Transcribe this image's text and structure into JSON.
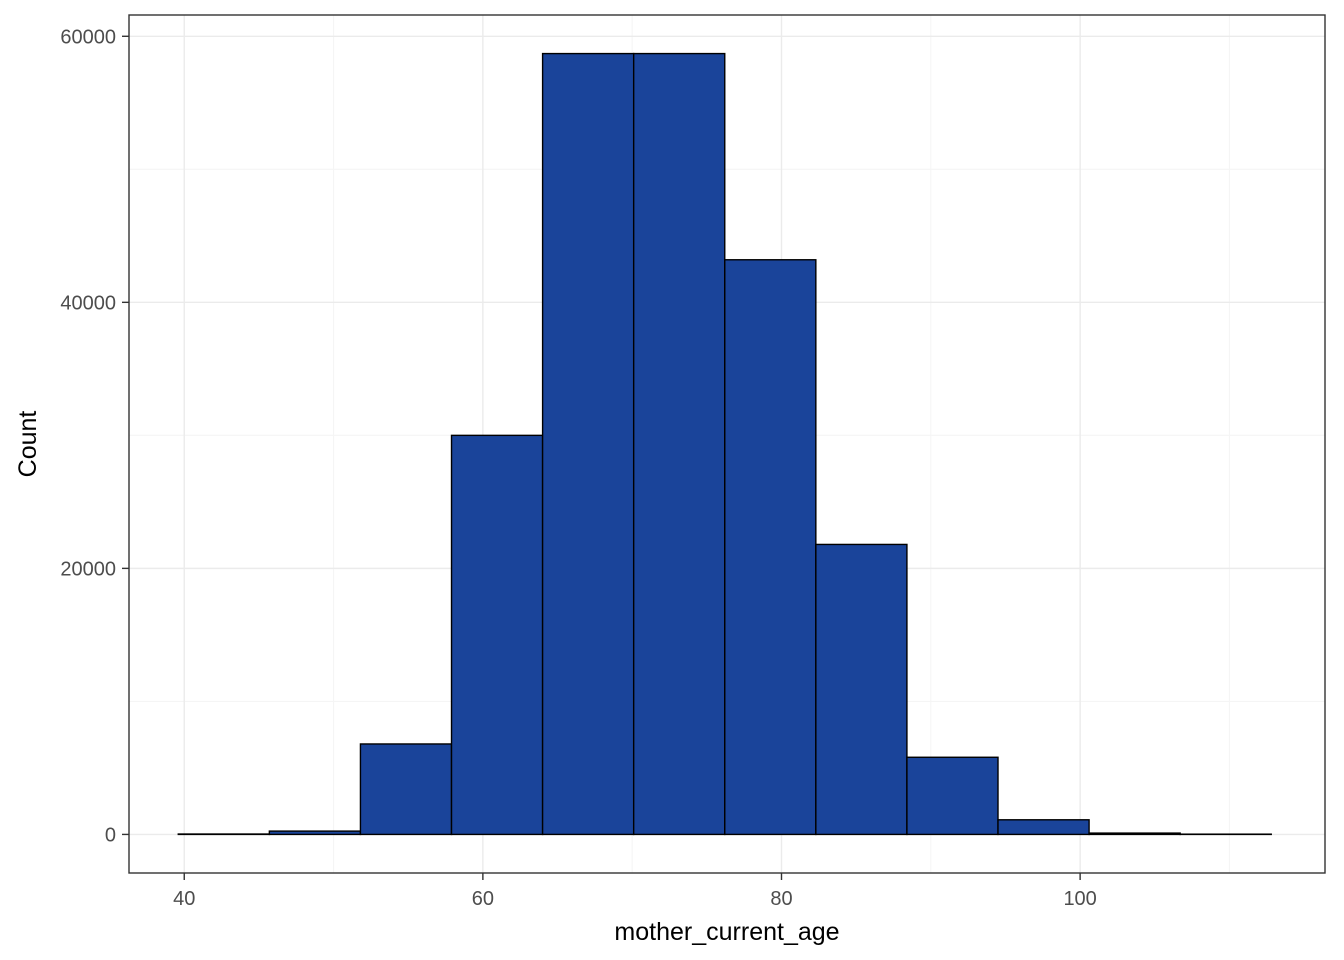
{
  "chart_data": {
    "type": "bar",
    "subtype": "histogram",
    "title": "",
    "xlabel": "mother_current_age",
    "ylabel": "Count",
    "xlim": [
      36.3,
      116.4
    ],
    "ylim": [
      -2900,
      61600
    ],
    "x_ticks": [
      40,
      60,
      80,
      100
    ],
    "x_tick_labels": [
      "40",
      "60",
      "80",
      "100"
    ],
    "y_ticks": [
      0,
      20000,
      40000,
      60000
    ],
    "y_tick_labels": [
      "0",
      "20000",
      "40000",
      "60000"
    ],
    "x_minor_ticks": [
      50,
      70,
      90,
      110
    ],
    "y_minor_ticks": [
      10000,
      30000,
      50000
    ],
    "bins": [
      {
        "x0": 39.6,
        "x1": 45.7,
        "count": 30
      },
      {
        "x0": 45.7,
        "x1": 51.8,
        "count": 250
      },
      {
        "x0": 51.8,
        "x1": 57.9,
        "count": 6800
      },
      {
        "x0": 57.9,
        "x1": 64.0,
        "count": 30000
      },
      {
        "x0": 64.0,
        "x1": 70.1,
        "count": 58700
      },
      {
        "x0": 70.1,
        "x1": 76.2,
        "count": 58700
      },
      {
        "x0": 76.2,
        "x1": 82.3,
        "count": 43200
      },
      {
        "x0": 82.3,
        "x1": 88.4,
        "count": 21800
      },
      {
        "x0": 88.4,
        "x1": 94.5,
        "count": 5800
      },
      {
        "x0": 94.5,
        "x1": 100.6,
        "count": 1100
      },
      {
        "x0": 100.6,
        "x1": 106.7,
        "count": 100
      },
      {
        "x0": 106.7,
        "x1": 112.8,
        "count": 20
      }
    ],
    "grid": true,
    "legend": "none",
    "colors": {
      "fill": "#1a449a",
      "outline": "#000000",
      "panel_border": "#333333",
      "grid_major": "#ebebeb",
      "grid_minor": "#f5f5f5"
    }
  }
}
